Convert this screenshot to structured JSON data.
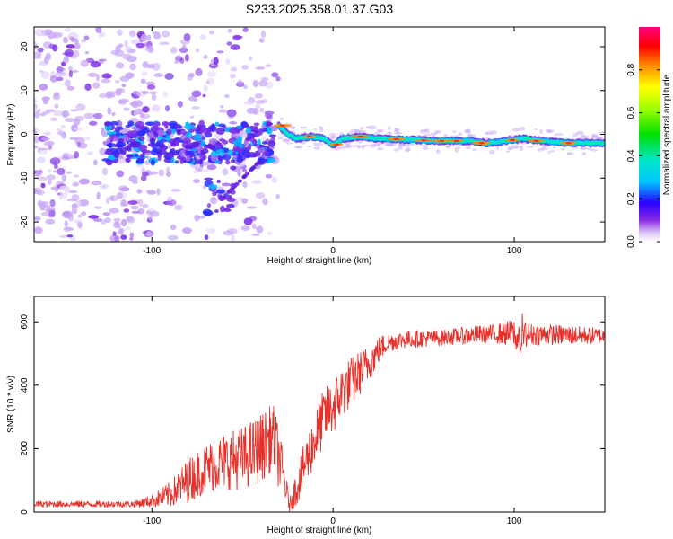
{
  "title": "S233.2025.358.01.37.G03",
  "chart_data": [
    {
      "type": "heatmap",
      "name": "spectrogram",
      "xlabel": "Height of straight line (km)",
      "ylabel": "Frequency (Hz)",
      "xlim": [
        -165,
        150
      ],
      "ylim": [
        -24.5,
        24.5
      ],
      "xticks": [
        -100,
        0,
        100
      ],
      "xtick_labels": [
        "-100",
        "0",
        "100"
      ],
      "yticks": [
        -20,
        -10,
        0,
        10,
        20
      ],
      "ytick_labels": [
        "-20",
        "-10",
        "0",
        "10",
        "20"
      ],
      "ridge": [
        [
          -30,
          2
        ],
        [
          -25,
          0
        ],
        [
          -20,
          -1
        ],
        [
          -12,
          -0.5
        ],
        [
          -5,
          -1
        ],
        [
          0,
          -2.5
        ],
        [
          5,
          -1
        ],
        [
          15,
          -0.5
        ],
        [
          25,
          -1
        ],
        [
          40,
          -1.2
        ],
        [
          60,
          -1.5
        ],
        [
          75,
          -1.5
        ],
        [
          85,
          -2
        ],
        [
          95,
          -1.5
        ],
        [
          105,
          -1
        ],
        [
          115,
          -1.5
        ],
        [
          130,
          -2
        ],
        [
          150,
          -2
        ]
      ],
      "colorbar": {
        "label": "Normalized spectral amplitude",
        "ticks": [
          0.0,
          0.2,
          0.4,
          0.6,
          0.8
        ],
        "tick_labels": [
          "0.0",
          "0.2",
          "0.4",
          "0.6",
          "0.8"
        ],
        "range": [
          0,
          1
        ]
      }
    },
    {
      "type": "line",
      "name": "snr",
      "xlabel": "Height of straight line (km)",
      "ylabel": "SNR (10 * v/v)",
      "xlim": [
        -165,
        150
      ],
      "ylim": [
        0,
        680
      ],
      "xticks": [
        -100,
        0,
        100
      ],
      "xtick_labels": [
        "-100",
        "0",
        "100"
      ],
      "yticks": [
        0,
        200,
        400,
        600
      ],
      "ytick_labels": [
        "0",
        "200",
        "400",
        "600"
      ],
      "color": "#e8302a",
      "envelope": [
        [
          -165,
          25
        ],
        [
          -110,
          25
        ],
        [
          -100,
          35
        ],
        [
          -90,
          55
        ],
        [
          -80,
          100
        ],
        [
          -70,
          140
        ],
        [
          -60,
          160
        ],
        [
          -50,
          170
        ],
        [
          -40,
          200
        ],
        [
          -33,
          240
        ],
        [
          -28,
          130
        ],
        [
          -24,
          20
        ],
        [
          -20,
          80
        ],
        [
          -15,
          160
        ],
        [
          -10,
          230
        ],
        [
          -5,
          300
        ],
        [
          0,
          330
        ],
        [
          5,
          380
        ],
        [
          10,
          410
        ],
        [
          15,
          440
        ],
        [
          20,
          470
        ],
        [
          25,
          510
        ],
        [
          30,
          535
        ],
        [
          40,
          545
        ],
        [
          60,
          550
        ],
        [
          80,
          560
        ],
        [
          100,
          565
        ],
        [
          103,
          530
        ],
        [
          106,
          560
        ],
        [
          120,
          560
        ],
        [
          150,
          555
        ]
      ],
      "noise": [
        [
          -165,
          10
        ],
        [
          -110,
          10
        ],
        [
          -100,
          20
        ],
        [
          -90,
          40
        ],
        [
          -80,
          70
        ],
        [
          -60,
          90
        ],
        [
          -40,
          110
        ],
        [
          -30,
          100
        ],
        [
          -24,
          20
        ],
        [
          -20,
          60
        ],
        [
          -10,
          90
        ],
        [
          0,
          90
        ],
        [
          10,
          80
        ],
        [
          20,
          60
        ],
        [
          30,
          30
        ],
        [
          60,
          25
        ],
        [
          90,
          30
        ],
        [
          100,
          45
        ],
        [
          110,
          35
        ],
        [
          150,
          25
        ]
      ]
    }
  ],
  "colors": {
    "line": "#e8302a",
    "axis": "#000000",
    "background": "#ffffff"
  }
}
